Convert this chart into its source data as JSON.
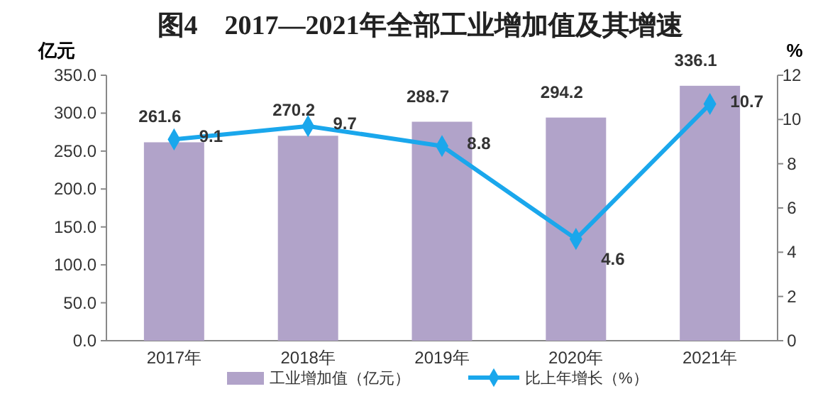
{
  "chart_data": {
    "type": "bar",
    "title": "图4　2017—2021年全部工业增加值及其增速",
    "ylabel": "亿元",
    "y2label": "%",
    "categories": [
      "2017年",
      "2018年",
      "2019年",
      "2020年",
      "2021年"
    ],
    "series": [
      {
        "name": "工业增加值（亿元）",
        "color": "#b1a3c9",
        "values": [
          261.6,
          270.2,
          288.7,
          294.2,
          336.1
        ]
      },
      {
        "name": "比上年增长（%）",
        "type": "line",
        "axis": "y2",
        "color": "#1aa7ec",
        "marker": "diamond",
        "values": [
          9.1,
          9.7,
          8.8,
          4.6,
          10.7
        ]
      }
    ],
    "ylim": [
      0,
      350
    ],
    "yticks": [
      {
        "value": 0,
        "label": "0.0"
      },
      {
        "value": 50,
        "label": "50.0"
      },
      {
        "value": 100,
        "label": "100.0"
      },
      {
        "value": 150,
        "label": "150.0"
      },
      {
        "value": 200,
        "label": "200.0"
      },
      {
        "value": 250,
        "label": "250.0"
      },
      {
        "value": 300,
        "label": "300.0"
      },
      {
        "value": 350,
        "label": "350.0"
      }
    ],
    "y2lim": [
      0,
      12
    ],
    "y2ticks": [
      0,
      2,
      4,
      6,
      8,
      10,
      12
    ],
    "data_labels": true,
    "legend": "bottom",
    "grid": false
  }
}
